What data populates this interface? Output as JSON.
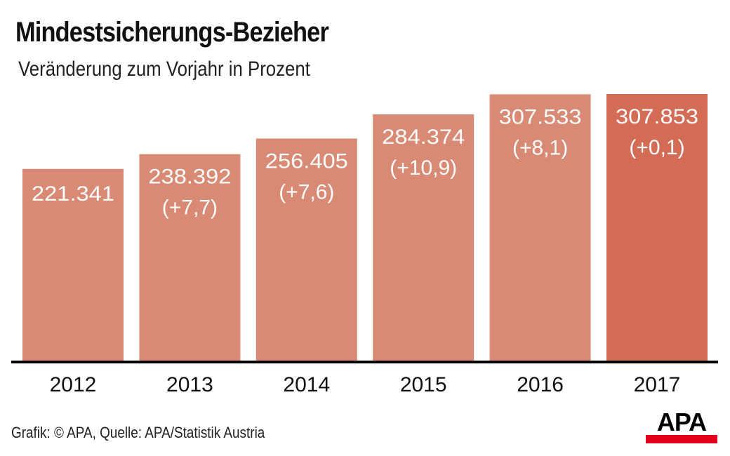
{
  "chart_data": {
    "type": "bar",
    "title": "Mindestsicherungs-Bezieher",
    "subtitle": "Veränderung zum Vorjahr in Prozent",
    "categories": [
      "2012",
      "2013",
      "2014",
      "2015",
      "2016",
      "2017"
    ],
    "values": [
      221341,
      238392,
      256405,
      284374,
      307533,
      307853
    ],
    "value_labels": [
      "221.341",
      "238.392",
      "256.405",
      "284.374",
      "307.533",
      "307.853"
    ],
    "change_labels": [
      "",
      "(+7,7)",
      "(+7,6)",
      "(+10,9)",
      "(+8,1)",
      "(+0,1)"
    ],
    "change_percent": [
      null,
      7.7,
      7.6,
      10.9,
      8.1,
      0.1
    ],
    "xlabel": "",
    "ylabel": "",
    "ylim": [
      0,
      307853
    ],
    "grid": false,
    "legend": "none",
    "colors": {
      "bar": "#d98a74",
      "highlight_bar": "#d36b55",
      "axis": "#000000"
    },
    "highlight_index": 5
  },
  "footer": {
    "source": "Grafik: © APA, Quelle: APA/Statistik Austria"
  },
  "logo": {
    "text": "APA",
    "bar_color": "#e2001a"
  }
}
